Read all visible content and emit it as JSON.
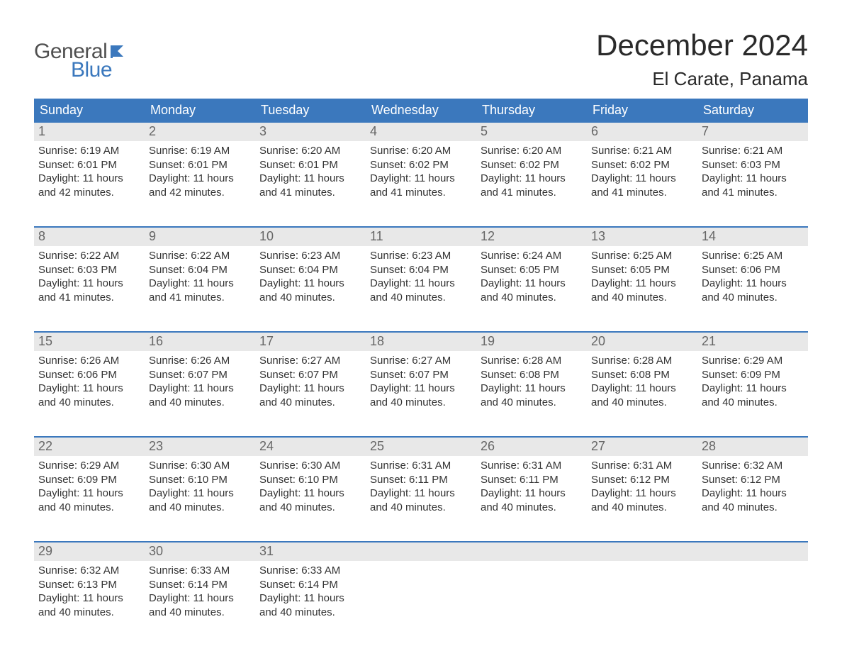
{
  "logo": {
    "word1": "General",
    "word2": "Blue",
    "text_color": "#505050",
    "accent_color": "#3b78bd"
  },
  "title": "December 2024",
  "location": "El Carate, Panama",
  "colors": {
    "header_bg": "#3b78bd",
    "header_text": "#ffffff",
    "daynum_bg": "#e8e8e8",
    "daynum_text": "#666666",
    "body_text": "#333333",
    "week_border": "#3b78bd",
    "page_bg": "#ffffff"
  },
  "typography": {
    "title_fontsize": 42,
    "location_fontsize": 26,
    "header_fontsize": 18,
    "daynum_fontsize": 18,
    "body_fontsize": 15
  },
  "layout": {
    "columns": 7,
    "rows": 5,
    "start_day_index": 0
  },
  "weekdays": [
    "Sunday",
    "Monday",
    "Tuesday",
    "Wednesday",
    "Thursday",
    "Friday",
    "Saturday"
  ],
  "days": [
    {
      "n": 1,
      "sunrise": "6:19 AM",
      "sunset": "6:01 PM",
      "daylight": "11 hours and 42 minutes."
    },
    {
      "n": 2,
      "sunrise": "6:19 AM",
      "sunset": "6:01 PM",
      "daylight": "11 hours and 42 minutes."
    },
    {
      "n": 3,
      "sunrise": "6:20 AM",
      "sunset": "6:01 PM",
      "daylight": "11 hours and 41 minutes."
    },
    {
      "n": 4,
      "sunrise": "6:20 AM",
      "sunset": "6:02 PM",
      "daylight": "11 hours and 41 minutes."
    },
    {
      "n": 5,
      "sunrise": "6:20 AM",
      "sunset": "6:02 PM",
      "daylight": "11 hours and 41 minutes."
    },
    {
      "n": 6,
      "sunrise": "6:21 AM",
      "sunset": "6:02 PM",
      "daylight": "11 hours and 41 minutes."
    },
    {
      "n": 7,
      "sunrise": "6:21 AM",
      "sunset": "6:03 PM",
      "daylight": "11 hours and 41 minutes."
    },
    {
      "n": 8,
      "sunrise": "6:22 AM",
      "sunset": "6:03 PM",
      "daylight": "11 hours and 41 minutes."
    },
    {
      "n": 9,
      "sunrise": "6:22 AM",
      "sunset": "6:04 PM",
      "daylight": "11 hours and 41 minutes."
    },
    {
      "n": 10,
      "sunrise": "6:23 AM",
      "sunset": "6:04 PM",
      "daylight": "11 hours and 40 minutes."
    },
    {
      "n": 11,
      "sunrise": "6:23 AM",
      "sunset": "6:04 PM",
      "daylight": "11 hours and 40 minutes."
    },
    {
      "n": 12,
      "sunrise": "6:24 AM",
      "sunset": "6:05 PM",
      "daylight": "11 hours and 40 minutes."
    },
    {
      "n": 13,
      "sunrise": "6:25 AM",
      "sunset": "6:05 PM",
      "daylight": "11 hours and 40 minutes."
    },
    {
      "n": 14,
      "sunrise": "6:25 AM",
      "sunset": "6:06 PM",
      "daylight": "11 hours and 40 minutes."
    },
    {
      "n": 15,
      "sunrise": "6:26 AM",
      "sunset": "6:06 PM",
      "daylight": "11 hours and 40 minutes."
    },
    {
      "n": 16,
      "sunrise": "6:26 AM",
      "sunset": "6:07 PM",
      "daylight": "11 hours and 40 minutes."
    },
    {
      "n": 17,
      "sunrise": "6:27 AM",
      "sunset": "6:07 PM",
      "daylight": "11 hours and 40 minutes."
    },
    {
      "n": 18,
      "sunrise": "6:27 AM",
      "sunset": "6:07 PM",
      "daylight": "11 hours and 40 minutes."
    },
    {
      "n": 19,
      "sunrise": "6:28 AM",
      "sunset": "6:08 PM",
      "daylight": "11 hours and 40 minutes."
    },
    {
      "n": 20,
      "sunrise": "6:28 AM",
      "sunset": "6:08 PM",
      "daylight": "11 hours and 40 minutes."
    },
    {
      "n": 21,
      "sunrise": "6:29 AM",
      "sunset": "6:09 PM",
      "daylight": "11 hours and 40 minutes."
    },
    {
      "n": 22,
      "sunrise": "6:29 AM",
      "sunset": "6:09 PM",
      "daylight": "11 hours and 40 minutes."
    },
    {
      "n": 23,
      "sunrise": "6:30 AM",
      "sunset": "6:10 PM",
      "daylight": "11 hours and 40 minutes."
    },
    {
      "n": 24,
      "sunrise": "6:30 AM",
      "sunset": "6:10 PM",
      "daylight": "11 hours and 40 minutes."
    },
    {
      "n": 25,
      "sunrise": "6:31 AM",
      "sunset": "6:11 PM",
      "daylight": "11 hours and 40 minutes."
    },
    {
      "n": 26,
      "sunrise": "6:31 AM",
      "sunset": "6:11 PM",
      "daylight": "11 hours and 40 minutes."
    },
    {
      "n": 27,
      "sunrise": "6:31 AM",
      "sunset": "6:12 PM",
      "daylight": "11 hours and 40 minutes."
    },
    {
      "n": 28,
      "sunrise": "6:32 AM",
      "sunset": "6:12 PM",
      "daylight": "11 hours and 40 minutes."
    },
    {
      "n": 29,
      "sunrise": "6:32 AM",
      "sunset": "6:13 PM",
      "daylight": "11 hours and 40 minutes."
    },
    {
      "n": 30,
      "sunrise": "6:33 AM",
      "sunset": "6:14 PM",
      "daylight": "11 hours and 40 minutes."
    },
    {
      "n": 31,
      "sunrise": "6:33 AM",
      "sunset": "6:14 PM",
      "daylight": "11 hours and 40 minutes."
    }
  ],
  "labels": {
    "sunrise": "Sunrise:",
    "sunset": "Sunset:",
    "daylight": "Daylight:"
  }
}
